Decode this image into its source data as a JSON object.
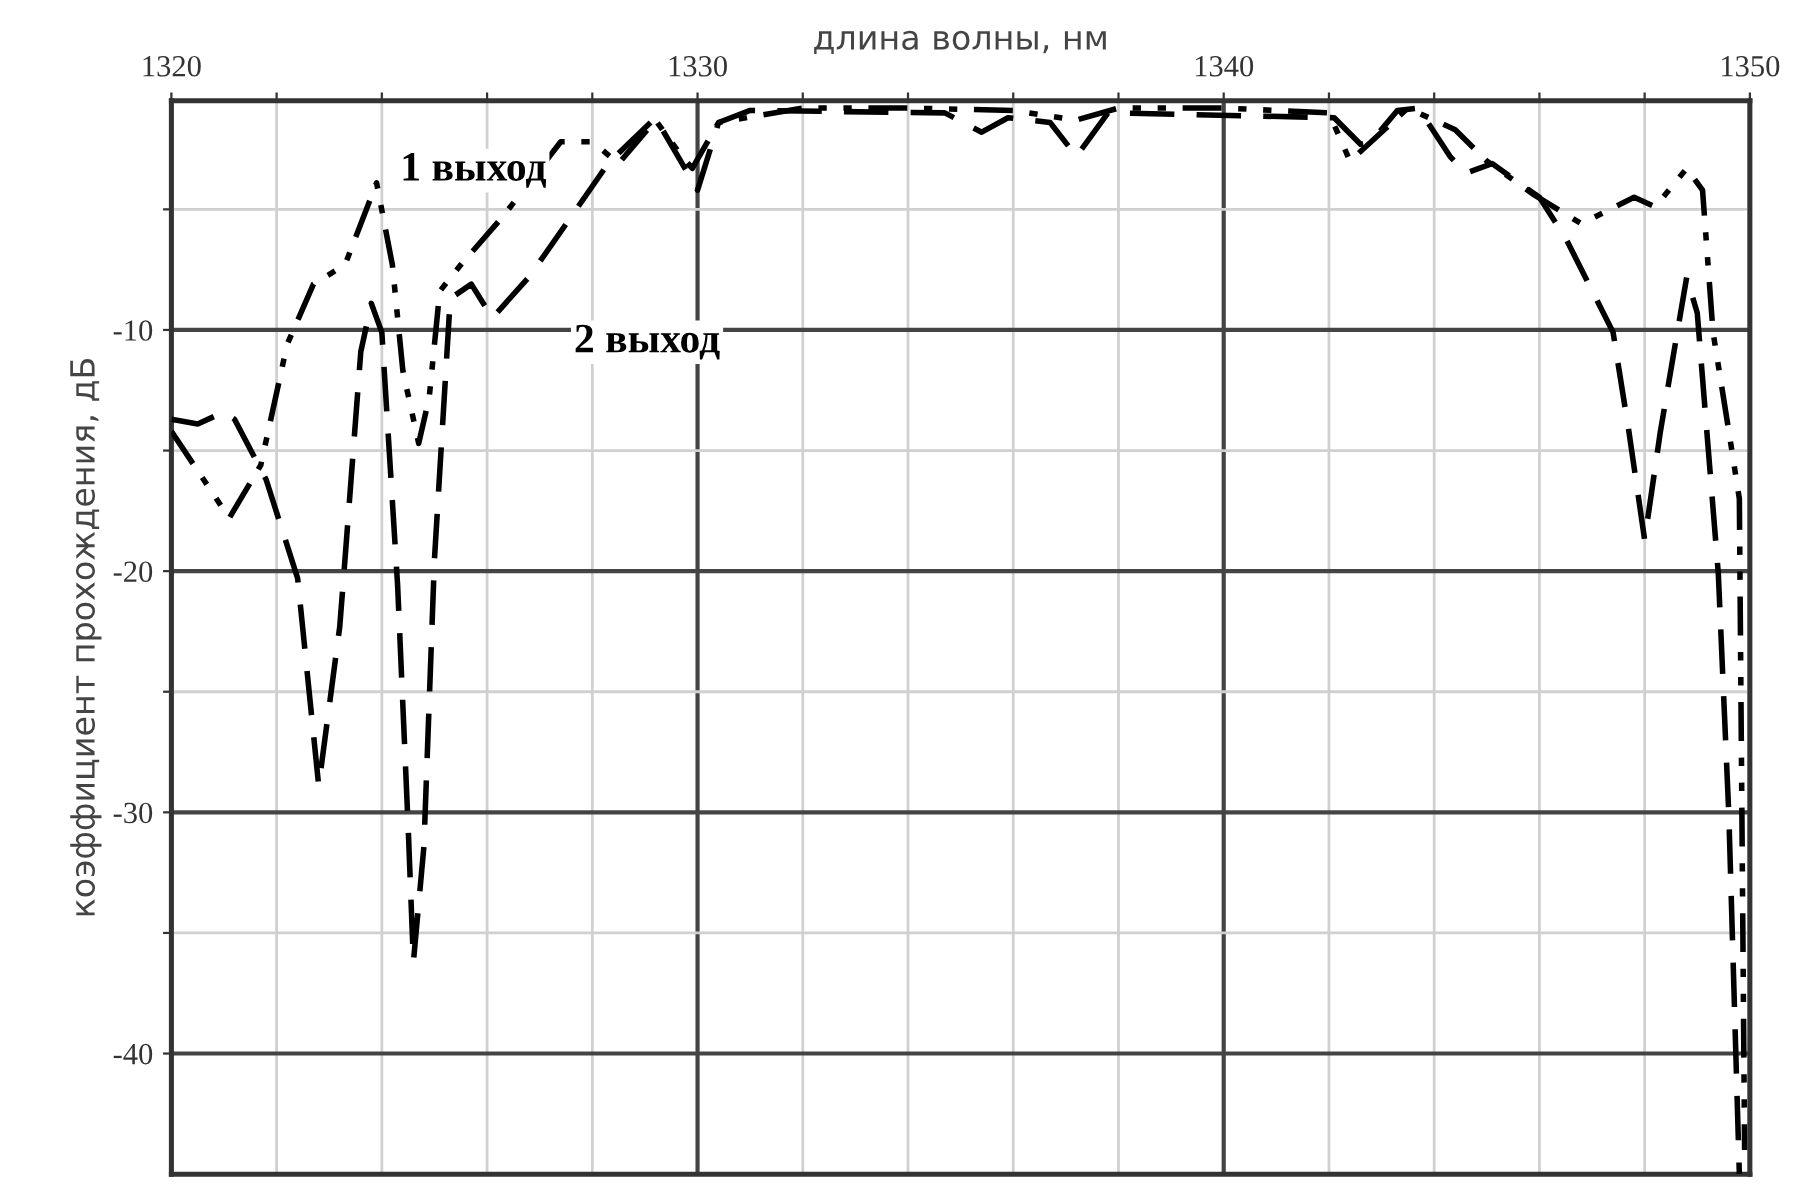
{
  "chart_data": {
    "type": "line",
    "xlabel": "длина волны, нм",
    "ylabel": "коэффициент прохождения, дБ",
    "xlim": [
      1320,
      1350
    ],
    "ylim": [
      -45,
      -0.5
    ],
    "xticks": [
      1320,
      {
        "value": 1322,
        "label": null
      },
      {
        "value": 1324,
        "label": null
      },
      {
        "value": 1326,
        "label": null
      },
      {
        "value": 1328,
        "label": null
      },
      1330,
      {
        "value": 1332,
        "label": null
      },
      {
        "value": 1334,
        "label": null
      },
      {
        "value": 1336,
        "label": null
      },
      {
        "value": 1338,
        "label": null
      },
      1340,
      {
        "value": 1342,
        "label": null
      },
      {
        "value": 1344,
        "label": null
      },
      {
        "value": 1346,
        "label": null
      },
      {
        "value": 1348,
        "label": null
      },
      1350
    ],
    "yticks": [
      {
        "value": -5,
        "label": null
      },
      -10,
      {
        "value": -15,
        "label": null
      },
      -20,
      {
        "value": -25,
        "label": null
      },
      -30,
      {
        "value": -35,
        "label": null
      },
      -40
    ],
    "grid": true,
    "annotations": [
      "1 выход",
      "2 выход"
    ],
    "series": [
      {
        "color": "#000000",
        "line_style": "dashdot",
        "x": [
          1320,
          1321.1,
          1321.7,
          1322.2,
          1322.7,
          1323.3,
          1323.9,
          1324.2,
          1324.4,
          1324.7,
          1324.9,
          1325.1,
          1325.5,
          1326.3,
          1327.4,
          1328.0,
          1328.5,
          1329.2,
          1329.7,
          1329.9,
          1330.4,
          1332,
          1334,
          1336,
          1337.2,
          1338,
          1340,
          1342,
          1342.4,
          1343.5,
          1344.4,
          1345.0,
          1345.9,
          1346.8,
          1347.8,
          1348.2,
          1348.8,
          1349.1,
          1349.3,
          1349.6,
          1349.8,
          1349.9
        ],
        "values": [
          -14.2,
          -17.8,
          -15.6,
          -10.6,
          -8.1,
          -7.3,
          -3.9,
          -7.3,
          -11.7,
          -14.7,
          -12.8,
          -8.4,
          -7.3,
          -5.3,
          -2.2,
          -2.2,
          -3.1,
          -1.3,
          -2.8,
          -3.3,
          -1.4,
          -0.8,
          -0.8,
          -0.9,
          -1.3,
          -0.8,
          -0.8,
          -1.0,
          -3.0,
          -0.8,
          -1.7,
          -3.0,
          -4.4,
          -5.6,
          -4.5,
          -4.9,
          -3.3,
          -4.2,
          -10.1,
          -14.2,
          -17.0,
          -44.0
        ]
      },
      {
        "color": "#000000",
        "line_style": "dashed",
        "x": [
          1320,
          1320.5,
          1321.0,
          1321.2,
          1321.8,
          1322.4,
          1322.8,
          1323.2,
          1323.3,
          1323.6,
          1323.8,
          1324.0,
          1324.3,
          1324.5,
          1324.6,
          1324.8,
          1325.0,
          1325.3,
          1325.7,
          1326.1,
          1326.8,
          1327.6,
          1328.3,
          1329.2,
          1329.6,
          1330.0,
          1330.4,
          1331.0,
          1334.7,
          1335.4,
          1335.9,
          1336.7,
          1337.2,
          1337.8,
          1342.1,
          1342.6,
          1342.8,
          1343.3,
          1343.7,
          1344.3,
          1344.6,
          1345.1,
          1346.0,
          1346.5,
          1347.4,
          1347.7,
          1348.0,
          1348.3,
          1348.8,
          1349.0,
          1349.4,
          1349.6,
          1349.8
        ],
        "values": [
          -13.7,
          -13.9,
          -13.4,
          -13.7,
          -16.2,
          -20.3,
          -28.9,
          -22.3,
          -19.5,
          -10.9,
          -8.9,
          -10.1,
          -20.6,
          -30.6,
          -36.2,
          -31.4,
          -19.5,
          -8.7,
          -8.1,
          -9.5,
          -7.8,
          -5.3,
          -3.1,
          -1.2,
          -2.7,
          -4.2,
          -1.4,
          -0.9,
          -1.0,
          -1.8,
          -1.2,
          -1.4,
          -2.8,
          -1.0,
          -1.2,
          -2.3,
          -2.2,
          -0.9,
          -0.8,
          -2.8,
          -3.5,
          -3.1,
          -4.5,
          -6.2,
          -10.1,
          -14.2,
          -18.7,
          -14.2,
          -7.8,
          -9.3,
          -20.1,
          -30.1,
          -45.0
        ]
      }
    ]
  }
}
